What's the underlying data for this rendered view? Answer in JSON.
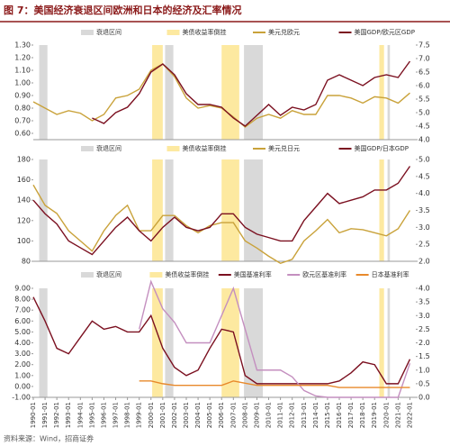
{
  "title": "图 7：美国经济衰退区间欧洲和日本的经济及汇率情况",
  "source": "资料来源：Wind，招商证券",
  "chart_data": [
    {
      "type": "line",
      "xlim": [
        1990,
        2022.5
      ],
      "x": [
        1990,
        1991,
        1992,
        1993,
        1994,
        1995,
        1996,
        1997,
        1998,
        1999,
        2000,
        2001,
        2002,
        2003,
        2004,
        2005,
        2006,
        2007,
        2008,
        2009,
        2010,
        2011,
        2012,
        2013,
        2014,
        2015,
        2016,
        2017,
        2018,
        2019,
        2020,
        2021,
        2022
      ],
      "bands": [
        {
          "name": "衰退区间",
          "color": "#d9d9d9",
          "spans": [
            [
              1990.5,
              1991.2
            ],
            [
              2001.2,
              2001.9
            ],
            [
              2007.9,
              2009.5
            ],
            [
              2020.1,
              2020.3
            ]
          ]
        },
        {
          "name": "美债收益率倒挂",
          "color": "#fde9a0",
          "spans": [
            [
              2000.1,
              2001.0
            ],
            [
              2006.0,
              2007.5
            ],
            [
              2019.4,
              2019.8
            ]
          ]
        }
      ],
      "ylim": [
        0.55,
        1.3
      ],
      "yticks": [
        {
          "value": 0.6,
          "label": "0.60"
        },
        {
          "value": 0.7,
          "label": "0.70"
        },
        {
          "value": 0.8,
          "label": "0.80"
        },
        {
          "value": 0.9,
          "label": "0.90"
        },
        {
          "value": 1.0,
          "label": "1.00"
        },
        {
          "value": 1.1,
          "label": "1.10"
        },
        {
          "value": 1.2,
          "label": "1.20"
        },
        {
          "value": 1.3,
          "label": "1.30"
        }
      ],
      "y2lim": [
        4.0,
        7.5
      ],
      "y2ticks": [
        {
          "value": 4,
          "label": "4.0"
        },
        4.5,
        {
          "value": 5,
          "label": "5.0"
        },
        5.5,
        {
          "value": 6,
          "label": "6.0"
        },
        6.5,
        {
          "value": 7,
          "label": "7.0"
        },
        7.5
      ],
      "series": [
        {
          "name": "美元兑欧元",
          "color": "#c9a23a",
          "values": [
            0.85,
            0.8,
            0.75,
            0.78,
            0.76,
            0.7,
            0.75,
            0.88,
            0.9,
            0.95,
            1.1,
            1.15,
            1.05,
            0.88,
            0.8,
            0.82,
            0.8,
            0.73,
            0.65,
            0.72,
            0.75,
            0.72,
            0.78,
            0.75,
            0.75,
            0.9,
            0.9,
            0.88,
            0.84,
            0.89,
            0.88,
            0.84,
            0.92
          ]
        },
        {
          "name": "美国GDP/欧元区GDP",
          "color": "#7b1020",
          "axis": "y2",
          "values": [
            null,
            null,
            null,
            null,
            null,
            4.8,
            4.6,
            5.0,
            5.2,
            5.7,
            6.5,
            6.8,
            6.4,
            5.7,
            5.3,
            5.3,
            5.2,
            4.8,
            4.5,
            4.9,
            5.3,
            4.9,
            5.2,
            5.1,
            5.3,
            6.2,
            6.4,
            6.2,
            6.0,
            6.3,
            6.4,
            6.3,
            6.9
          ]
        }
      ]
    },
    {
      "type": "line",
      "xlim": [
        1990,
        2022.5
      ],
      "x": [
        1990,
        1991,
        1992,
        1993,
        1994,
        1995,
        1996,
        1997,
        1998,
        1999,
        2000,
        2001,
        2002,
        2003,
        2004,
        2005,
        2006,
        2007,
        2008,
        2009,
        2010,
        2011,
        2012,
        2013,
        2014,
        2015,
        2016,
        2017,
        2018,
        2019,
        2020,
        2021,
        2022
      ],
      "bands": [
        {
          "name": "衰退区间",
          "color": "#d9d9d9",
          "spans": [
            [
              1990.5,
              1991.2
            ],
            [
              2001.2,
              2001.9
            ],
            [
              2007.9,
              2009.5
            ],
            [
              2020.1,
              2020.3
            ]
          ]
        },
        {
          "name": "美债收益率倒挂",
          "color": "#fde9a0",
          "spans": [
            [
              2000.1,
              2001.0
            ],
            [
              2006.0,
              2007.5
            ],
            [
              2019.4,
              2019.8
            ]
          ]
        }
      ],
      "ylim": [
        80,
        180
      ],
      "yticks": [
        80,
        100,
        120,
        140,
        160,
        180
      ],
      "y2lim": [
        2.0,
        5.0
      ],
      "y2ticks": [
        {
          "value": 2,
          "label": "2.0"
        },
        2.5,
        {
          "value": 3,
          "label": "3.0"
        },
        3.5,
        {
          "value": 4,
          "label": "4.0"
        },
        4.5,
        {
          "value": 5,
          "label": "5.0"
        }
      ],
      "series": [
        {
          "name": "美元兑日元",
          "color": "#c9a23a",
          "values": [
            155,
            135,
            127,
            110,
            100,
            90,
            110,
            125,
            135,
            110,
            110,
            125,
            125,
            115,
            108,
            115,
            118,
            118,
            100,
            93,
            85,
            78,
            82,
            100,
            110,
            121,
            108,
            112,
            111,
            108,
            105,
            112,
            130
          ]
        },
        {
          "name": "美国GDP/日本GDP",
          "color": "#7b1020",
          "axis": "y2",
          "values": [
            3.8,
            3.4,
            3.1,
            2.6,
            2.4,
            2.2,
            2.6,
            3.0,
            3.3,
            2.9,
            2.6,
            3.0,
            3.3,
            3.0,
            2.9,
            3.0,
            3.4,
            3.4,
            3.0,
            2.8,
            2.7,
            2.6,
            2.6,
            3.2,
            3.6,
            4.0,
            3.7,
            3.8,
            3.9,
            4.1,
            4.1,
            4.3,
            4.8
          ]
        }
      ]
    },
    {
      "type": "line",
      "xlim": [
        1990,
        2022.5
      ],
      "x": [
        1990,
        1991,
        1992,
        1993,
        1994,
        1995,
        1996,
        1997,
        1998,
        1999,
        2000,
        2001,
        2002,
        2003,
        2004,
        2005,
        2006,
        2007,
        2008,
        2009,
        2010,
        2011,
        2012,
        2013,
        2014,
        2015,
        2016,
        2017,
        2018,
        2019,
        2020,
        2021,
        2022
      ],
      "bands": [
        {
          "name": "衰退区间",
          "color": "#d9d9d9",
          "spans": [
            [
              1990.5,
              1991.2
            ],
            [
              2001.2,
              2001.9
            ],
            [
              2007.9,
              2009.5
            ],
            [
              2020.1,
              2020.3
            ]
          ]
        },
        {
          "name": "美债收益率倒挂",
          "color": "#fde9a0",
          "spans": [
            [
              2000.1,
              2001.0
            ],
            [
              2006.0,
              2007.5
            ],
            [
              2019.4,
              2019.8
            ]
          ]
        }
      ],
      "ylim": [
        -1,
        9
      ],
      "yticks": [
        {
          "value": -1,
          "label": "-1.00"
        },
        {
          "value": 0,
          "label": "0.00"
        },
        {
          "value": 1,
          "label": "1.00"
        },
        {
          "value": 2,
          "label": "2.00"
        },
        {
          "value": 3,
          "label": "3.00"
        },
        {
          "value": 4,
          "label": "4.00"
        },
        {
          "value": 5,
          "label": "5.00"
        },
        {
          "value": 6,
          "label": "6.00"
        },
        {
          "value": 7,
          "label": "7.00"
        },
        {
          "value": 8,
          "label": "8.00"
        },
        {
          "value": 9,
          "label": "9.00"
        }
      ],
      "y2lim": [
        0,
        4
      ],
      "y2ticks": [
        {
          "value": 0,
          "label": "0.0"
        },
        0.5,
        {
          "value": 1,
          "label": "1.0"
        },
        1.5,
        {
          "value": 2,
          "label": "2.0"
        },
        2.5,
        {
          "value": 3,
          "label": "3.0"
        },
        3.5,
        {
          "value": 4,
          "label": "4.0"
        }
      ],
      "xticks": [
        {
          "value": 1990,
          "label": "1990-01"
        },
        {
          "value": 1991,
          "label": "1991-01"
        },
        {
          "value": 1992,
          "label": "1992-01"
        },
        {
          "value": 1993,
          "label": "1993-01"
        },
        {
          "value": 1994,
          "label": "1994-01"
        },
        {
          "value": 1995,
          "label": "1995-01"
        },
        {
          "value": 1996,
          "label": "1996-01"
        },
        {
          "value": 1997,
          "label": "1997-01"
        },
        {
          "value": 1998,
          "label": "1998-01"
        },
        {
          "value": 1999,
          "label": "1999-01"
        },
        {
          "value": 2000,
          "label": "2000-01"
        },
        {
          "value": 2001,
          "label": "2001-01"
        },
        {
          "value": 2002,
          "label": "2002-01"
        },
        {
          "value": 2003,
          "label": "2003-01"
        },
        {
          "value": 2004,
          "label": "2004-01"
        },
        {
          "value": 2005,
          "label": "2005-01"
        },
        {
          "value": 2006,
          "label": "2006-01"
        },
        {
          "value": 2007,
          "label": "2007-01"
        },
        {
          "value": 2008,
          "label": "2008-01"
        },
        {
          "value": 2009,
          "label": "2009-01"
        },
        {
          "value": 2010,
          "label": "2010-01"
        },
        {
          "value": 2011,
          "label": "2011-01"
        },
        {
          "value": 2012,
          "label": "2012-01"
        },
        {
          "value": 2013,
          "label": "2013-01"
        },
        {
          "value": 2014,
          "label": "2014-01"
        },
        {
          "value": 2015,
          "label": "2015-01"
        },
        {
          "value": 2016,
          "label": "2016-01"
        },
        {
          "value": 2017,
          "label": "2017-01"
        },
        {
          "value": 2018,
          "label": "2018-01"
        },
        {
          "value": 2019,
          "label": "2019-01"
        },
        {
          "value": 2020,
          "label": "2020-01"
        },
        {
          "value": 2021,
          "label": "2021-01"
        },
        {
          "value": 2022,
          "label": "2022-01"
        }
      ],
      "series": [
        {
          "name": "美国基准利率",
          "color": "#7b1020",
          "values": [
            8.2,
            6.0,
            3.5,
            3.0,
            4.5,
            6.0,
            5.25,
            5.5,
            5.0,
            5.0,
            6.5,
            3.5,
            1.75,
            1.0,
            1.5,
            3.5,
            5.25,
            5.0,
            1.0,
            0.25,
            0.25,
            0.25,
            0.25,
            0.25,
            0.25,
            0.25,
            0.5,
            1.25,
            2.25,
            2.0,
            0.25,
            0.25,
            2.5
          ]
        },
        {
          "name": "欧元区基准利率",
          "color": "#c48fbf",
          "axis": "y2",
          "values": [
            null,
            null,
            null,
            null,
            null,
            null,
            null,
            null,
            null,
            2.5,
            4.25,
            3.25,
            2.75,
            2.0,
            2.0,
            2.0,
            3.0,
            4.0,
            2.5,
            1.0,
            1.0,
            1.0,
            0.75,
            0.25,
            0.05,
            0,
            0,
            0,
            0,
            0,
            0,
            0,
            1.25
          ]
        },
        {
          "name": "日本基准利率",
          "color": "#e8892b",
          "values": [
            null,
            null,
            null,
            null,
            null,
            null,
            null,
            null,
            null,
            0.5,
            0.5,
            0.25,
            0.1,
            0.1,
            0.1,
            0.1,
            0.1,
            0.5,
            0.3,
            0.1,
            0.1,
            0.1,
            0.1,
            0.1,
            0.1,
            0.1,
            -0.1,
            -0.1,
            -0.1,
            -0.1,
            -0.1,
            -0.1,
            -0.1
          ]
        }
      ]
    }
  ]
}
